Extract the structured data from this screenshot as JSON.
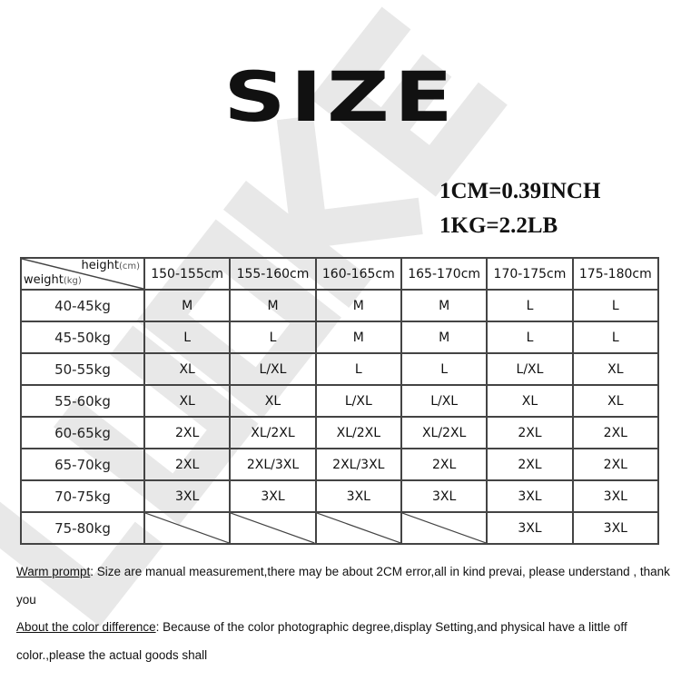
{
  "title": "SIZE",
  "conversions": [
    "1CM=0.39INCH",
    "1KG=2.2LB"
  ],
  "watermark": "LUOKE",
  "table": {
    "corner": {
      "height_label": "height",
      "height_unit": "(cm)",
      "weight_label": "weight",
      "weight_unit": "(kg)"
    },
    "columns": [
      "150-155cm",
      "155-160cm",
      "160-165cm",
      "165-170cm",
      "170-175cm",
      "175-180cm"
    ],
    "rows": [
      {
        "weight": "40-45kg",
        "sizes": [
          "M",
          "M",
          "M",
          "M",
          "L",
          "L"
        ]
      },
      {
        "weight": "45-50kg",
        "sizes": [
          "L",
          "L",
          "M",
          "M",
          "L",
          "L"
        ]
      },
      {
        "weight": "50-55kg",
        "sizes": [
          "XL",
          "L/XL",
          "L",
          "L",
          "L/XL",
          "XL"
        ]
      },
      {
        "weight": "55-60kg",
        "sizes": [
          "XL",
          "XL",
          "L/XL",
          "L/XL",
          "XL",
          "XL"
        ]
      },
      {
        "weight": "60-65kg",
        "sizes": [
          "2XL",
          "XL/2XL",
          "XL/2XL",
          "XL/2XL",
          "2XL",
          "2XL"
        ]
      },
      {
        "weight": "65-70kg",
        "sizes": [
          "2XL",
          "2XL/3XL",
          "2XL/3XL",
          "2XL",
          "2XL",
          "2XL"
        ]
      },
      {
        "weight": "70-75kg",
        "sizes": [
          "3XL",
          "3XL",
          "3XL",
          "3XL",
          "3XL",
          "3XL"
        ]
      },
      {
        "weight": "75-80kg",
        "sizes": [
          "",
          "",
          "",
          "",
          "3XL",
          "3XL"
        ]
      }
    ]
  },
  "notes": {
    "warm_label": "Warm prompt",
    "warm_text": ": Size are manual measurement,there may be about 2CM error,all in kind prevai, please understand , thank you",
    "color_label": "About the color difference",
    "color_text": ": Because of the color photographic degree,display Setting,and physical have a little off color.,please the actual goods shall"
  }
}
